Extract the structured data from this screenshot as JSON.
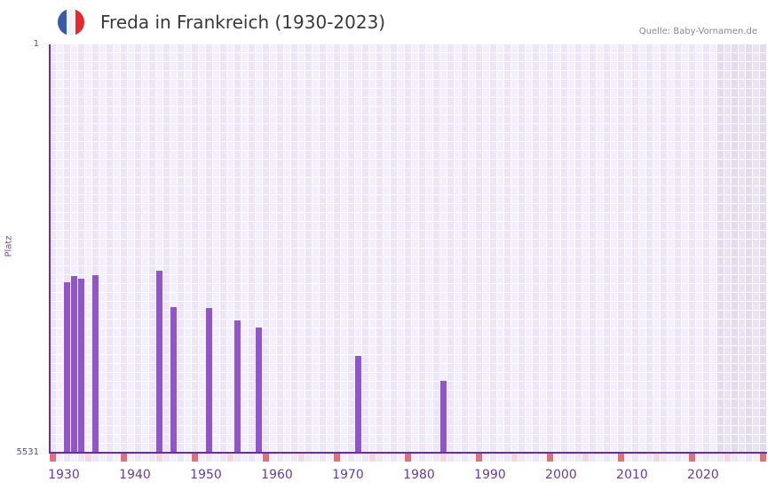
{
  "header": {
    "flag": {
      "name": "france-flag-icon",
      "colors": [
        "#3a5aa8",
        "#f2f2f2",
        "#e8282e"
      ]
    },
    "title": "Freda in Frankreich (1930-2023)",
    "source": "Quelle: Baby-Vornamen.de"
  },
  "axes": {
    "y_title": "Platz",
    "y_top_label": "1",
    "y_bottom_label": "5531",
    "x_labels": [
      "1930",
      "1940",
      "1950",
      "1960",
      "1970",
      "1980",
      "1990",
      "2000",
      "2010",
      "2020"
    ]
  },
  "colors": {
    "bar": "#8e56c6",
    "axis": "#6a2f98",
    "grid_a": "#ece6f8",
    "grid_b": "#f3effc",
    "shade_a": "#e2dcee",
    "shade_b": "#e8e4f1",
    "decade_marker": "#e0707a",
    "half_decade_marker": "#f4d6de"
  },
  "chart_data": {
    "type": "bar",
    "title": "Freda in Frankreich (1930-2023)",
    "xlabel": "",
    "ylabel": "Platz",
    "y_inverted": true,
    "ylim": [
      1,
      5531
    ],
    "x_range": [
      1930,
      2030
    ],
    "shaded_future_from": 2024,
    "grid": true,
    "legend": null,
    "categories": [
      1932,
      1933,
      1934,
      1936,
      1945,
      1947,
      1952,
      1956,
      1959,
      1973,
      1985
    ],
    "values": [
      3223,
      3139,
      3175,
      3127,
      3067,
      3560,
      3572,
      3740,
      3836,
      4221,
      4557
    ],
    "source": "Quelle: Baby-Vornamen.de"
  }
}
